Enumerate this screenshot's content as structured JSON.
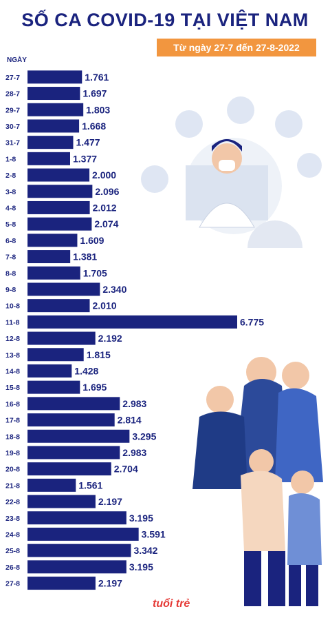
{
  "title": "SỐ CA COVID-19 TẠI VIỆT NAM",
  "subtitle": "Từ ngày 27-7 đến 27-8-2022",
  "ylabel": "NGÀY",
  "logo_text": "tuổi trẻ",
  "colors": {
    "bar": "#1a237e",
    "title": "#1a237e",
    "subtitle_bg": "#f2963f"
  },
  "chart_data": {
    "type": "bar",
    "orientation": "horizontal",
    "ylabel": "NGÀY",
    "categories": [
      "27-7",
      "28-7",
      "29-7",
      "30-7",
      "31-7",
      "1-8",
      "2-8",
      "3-8",
      "4-8",
      "5-8",
      "6-8",
      "7-8",
      "8-8",
      "9-8",
      "10-8",
      "11-8",
      "12-8",
      "13-8",
      "14-8",
      "15-8",
      "16-8",
      "17-8",
      "18-8",
      "19-8",
      "20-8",
      "21-8",
      "22-8",
      "23-8",
      "24-8",
      "25-8",
      "26-8",
      "27-8"
    ],
    "values": [
      1761,
      1697,
      1803,
      1668,
      1477,
      1377,
      2000,
      2096,
      2012,
      2074,
      1609,
      1381,
      1705,
      2340,
      2010,
      6775,
      2192,
      1815,
      1428,
      1695,
      2983,
      2814,
      3295,
      2983,
      2704,
      1561,
      2197,
      3195,
      3591,
      3342,
      3195,
      2197
    ],
    "labels": [
      "1.761",
      "1.697",
      "1.803",
      "1.668",
      "1.477",
      "1.377",
      "2.000",
      "2.096",
      "2.012",
      "2.074",
      "1.609",
      "1.381",
      "1.705",
      "2.340",
      "2.010",
      "6.775",
      "2.192",
      "1.815",
      "1.428",
      "1.695",
      "2.983",
      "2.814",
      "3.295",
      "2.983",
      "2.704",
      "1.561",
      "2.197",
      "3.195",
      "3.591",
      "3.342",
      "3.195",
      "2.197"
    ]
  }
}
